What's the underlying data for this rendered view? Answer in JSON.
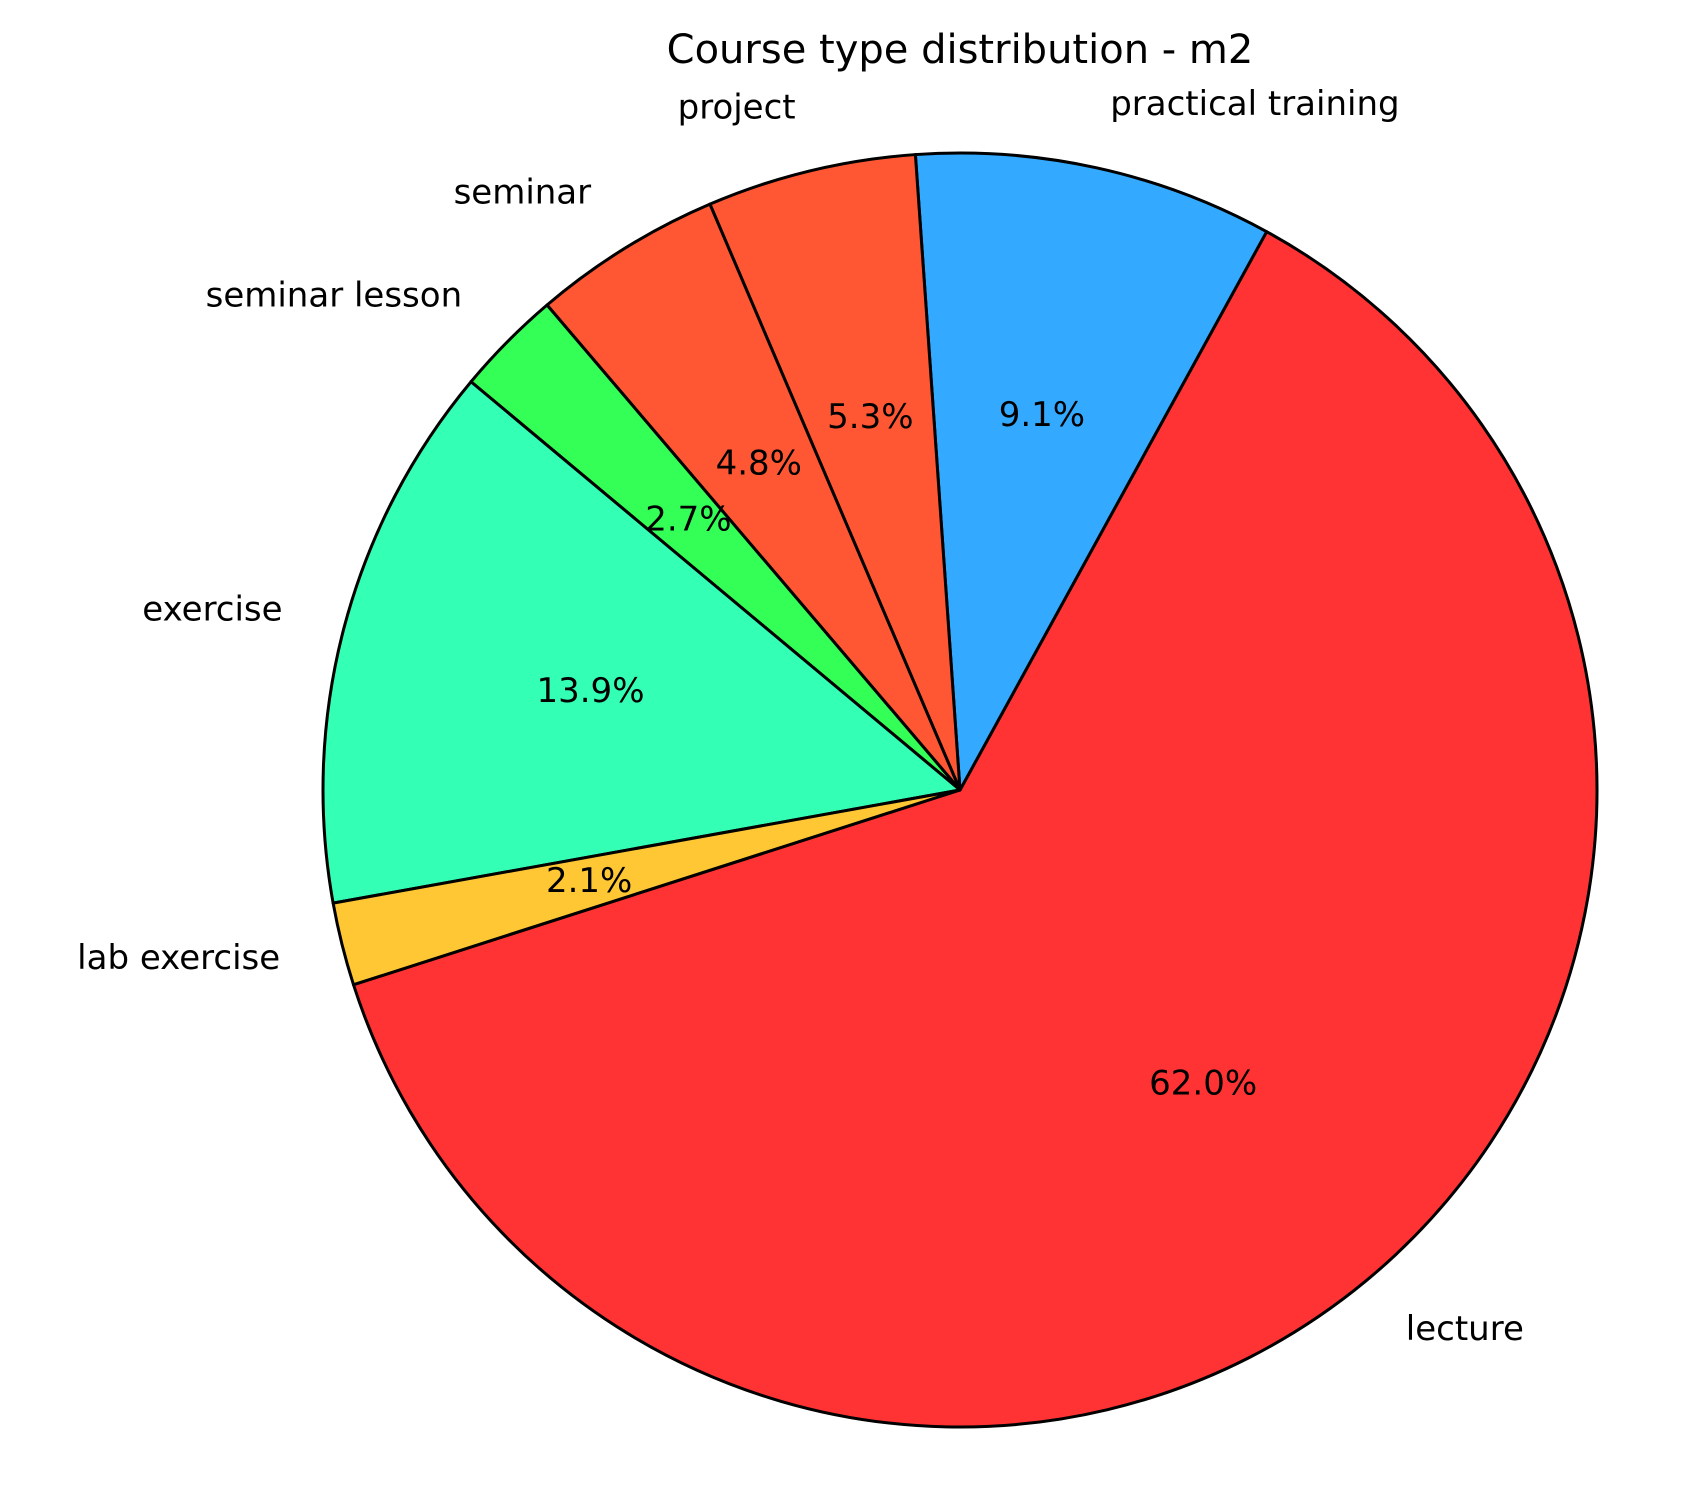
{
  "chart_data": {
    "type": "pie",
    "title": "Course type distribution - m2",
    "categories": [
      "lecture",
      "practical training",
      "project",
      "seminar",
      "seminar lesson",
      "exercise",
      "lab exercise"
    ],
    "values": [
      62.0,
      9.1,
      5.3,
      4.8,
      2.7,
      13.9,
      2.1
    ],
    "value_labels": [
      "62.0%",
      "9.1%",
      "5.3%",
      "4.8%",
      "2.7%",
      "13.9%",
      "2.1%"
    ],
    "colors": [
      "#ff3333",
      "#33aaff",
      "#ff5733",
      "#ff5733",
      "#33ff57",
      "#33ffb5",
      "#ffc733"
    ]
  }
}
